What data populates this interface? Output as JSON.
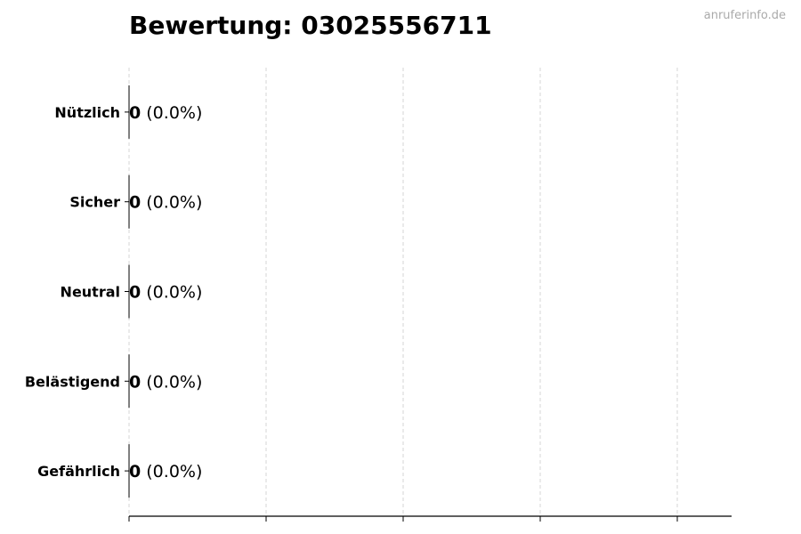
{
  "watermark": "anruferinfo.de",
  "chart_data": {
    "type": "bar",
    "orientation": "horizontal",
    "title": "Bewertung: 03025556711",
    "xlabel": "",
    "ylabel": "",
    "categories": [
      "Nützlich",
      "Sicher",
      "Neutral",
      "Belästigend",
      "Gefährlich"
    ],
    "values": [
      0,
      0,
      0,
      0,
      0
    ],
    "percent_labels": [
      "(0.0%)",
      "(0.0%)",
      "(0.0%)",
      "(0.0%)",
      "(0.0%)"
    ],
    "grid": "x, dashed",
    "x_tick_labels_shown": false,
    "colors": {
      "bar_edge": "#000000",
      "grid": "#cccccc",
      "watermark": "#aaaaaa"
    }
  }
}
